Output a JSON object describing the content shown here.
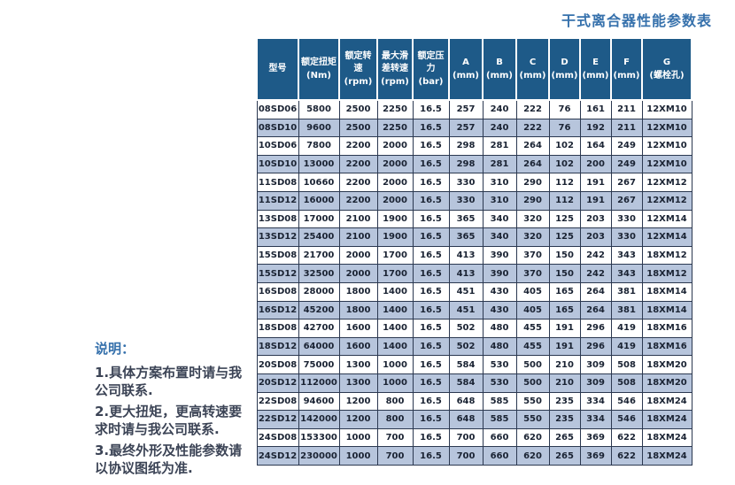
{
  "page": {
    "title": "干式离合器性能参数表"
  },
  "colors": {
    "accent": "#3671ac",
    "header_bg": "#1e5a88",
    "row_alt": "#b7c5dc",
    "grid": "#2b3850",
    "cell_text": "#1a2333",
    "note_text": "#3c4456"
  },
  "notes": {
    "heading": "说明：",
    "items": [
      "1.具体方案布置时请与我公司联系.",
      "2.更大扭矩，更高转速要求时请与我公司联系.",
      "3.最终外形及性能参数请以协议图纸为准."
    ]
  },
  "chart_data": {
    "type": "table",
    "title": "干式离合器性能参数表",
    "columns": [
      {
        "label": "型号",
        "sub": ""
      },
      {
        "label": "额定扭矩",
        "sub": "(Nm)"
      },
      {
        "label": "额定转速",
        "sub": "(rpm)"
      },
      {
        "label": "最大滑差转速",
        "sub": "(rpm)"
      },
      {
        "label": "额定压力",
        "sub": "(bar)"
      },
      {
        "label": "A",
        "sub": "(mm)"
      },
      {
        "label": "B",
        "sub": "(mm)"
      },
      {
        "label": "C",
        "sub": "(mm)"
      },
      {
        "label": "D",
        "sub": "(mm)"
      },
      {
        "label": "E",
        "sub": "(mm)"
      },
      {
        "label": "F",
        "sub": "(mm)"
      },
      {
        "label": "G",
        "sub": "(螺栓孔)"
      }
    ],
    "rows": [
      [
        "08SD06",
        "5800",
        "2500",
        "2250",
        "16.5",
        "257",
        "240",
        "222",
        "76",
        "161",
        "211",
        "12XM10"
      ],
      [
        "08SD10",
        "9600",
        "2500",
        "2250",
        "16.5",
        "257",
        "240",
        "222",
        "76",
        "192",
        "211",
        "12XM10"
      ],
      [
        "10SD06",
        "7800",
        "2200",
        "2000",
        "16.5",
        "298",
        "281",
        "264",
        "102",
        "164",
        "249",
        "12XM10"
      ],
      [
        "10SD10",
        "13000",
        "2200",
        "2000",
        "16.5",
        "298",
        "281",
        "264",
        "102",
        "200",
        "249",
        "12XM10"
      ],
      [
        "11SD08",
        "10660",
        "2200",
        "2000",
        "16.5",
        "330",
        "310",
        "290",
        "112",
        "191",
        "267",
        "12XM12"
      ],
      [
        "11SD12",
        "16000",
        "2200",
        "2000",
        "16.5",
        "330",
        "310",
        "290",
        "112",
        "191",
        "267",
        "12XM12"
      ],
      [
        "13SD08",
        "17000",
        "2100",
        "1900",
        "16.5",
        "365",
        "340",
        "320",
        "125",
        "203",
        "330",
        "12XM14"
      ],
      [
        "13SD12",
        "25400",
        "2100",
        "1900",
        "16.5",
        "365",
        "340",
        "320",
        "125",
        "203",
        "330",
        "12XM14"
      ],
      [
        "15SD08",
        "21700",
        "2000",
        "1700",
        "16.5",
        "413",
        "390",
        "370",
        "150",
        "242",
        "343",
        "18XM12"
      ],
      [
        "15SD12",
        "32500",
        "2000",
        "1700",
        "16.5",
        "413",
        "390",
        "370",
        "150",
        "242",
        "343",
        "18XM12"
      ],
      [
        "16SD08",
        "28000",
        "1800",
        "1400",
        "16.5",
        "451",
        "430",
        "405",
        "165",
        "264",
        "381",
        "18XM14"
      ],
      [
        "16SD12",
        "45200",
        "1800",
        "1400",
        "16.5",
        "451",
        "430",
        "405",
        "165",
        "264",
        "381",
        "18XM14"
      ],
      [
        "18SD08",
        "42700",
        "1600",
        "1400",
        "16.5",
        "502",
        "480",
        "455",
        "191",
        "296",
        "419",
        "18XM16"
      ],
      [
        "18SD12",
        "64000",
        "1600",
        "1400",
        "16.5",
        "502",
        "480",
        "455",
        "191",
        "296",
        "419",
        "18XM16"
      ],
      [
        "20SD08",
        "75000",
        "1300",
        "1000",
        "16.5",
        "584",
        "530",
        "500",
        "210",
        "309",
        "508",
        "18XM20"
      ],
      [
        "20SD12",
        "112000",
        "1300",
        "1000",
        "16.5",
        "584",
        "530",
        "500",
        "210",
        "309",
        "508",
        "18XM20"
      ],
      [
        "22SD08",
        "94600",
        "1200",
        "800",
        "16.5",
        "648",
        "585",
        "550",
        "235",
        "334",
        "546",
        "18XM24"
      ],
      [
        "22SD12",
        "142000",
        "1200",
        "800",
        "16.5",
        "648",
        "585",
        "550",
        "235",
        "334",
        "546",
        "18XM24"
      ],
      [
        "24SD08",
        "153300",
        "1000",
        "700",
        "16.5",
        "700",
        "660",
        "620",
        "265",
        "369",
        "622",
        "18XM24"
      ],
      [
        "24SD12",
        "230000",
        "1000",
        "700",
        "16.5",
        "700",
        "660",
        "620",
        "265",
        "369",
        "622",
        "18XM24"
      ]
    ]
  }
}
